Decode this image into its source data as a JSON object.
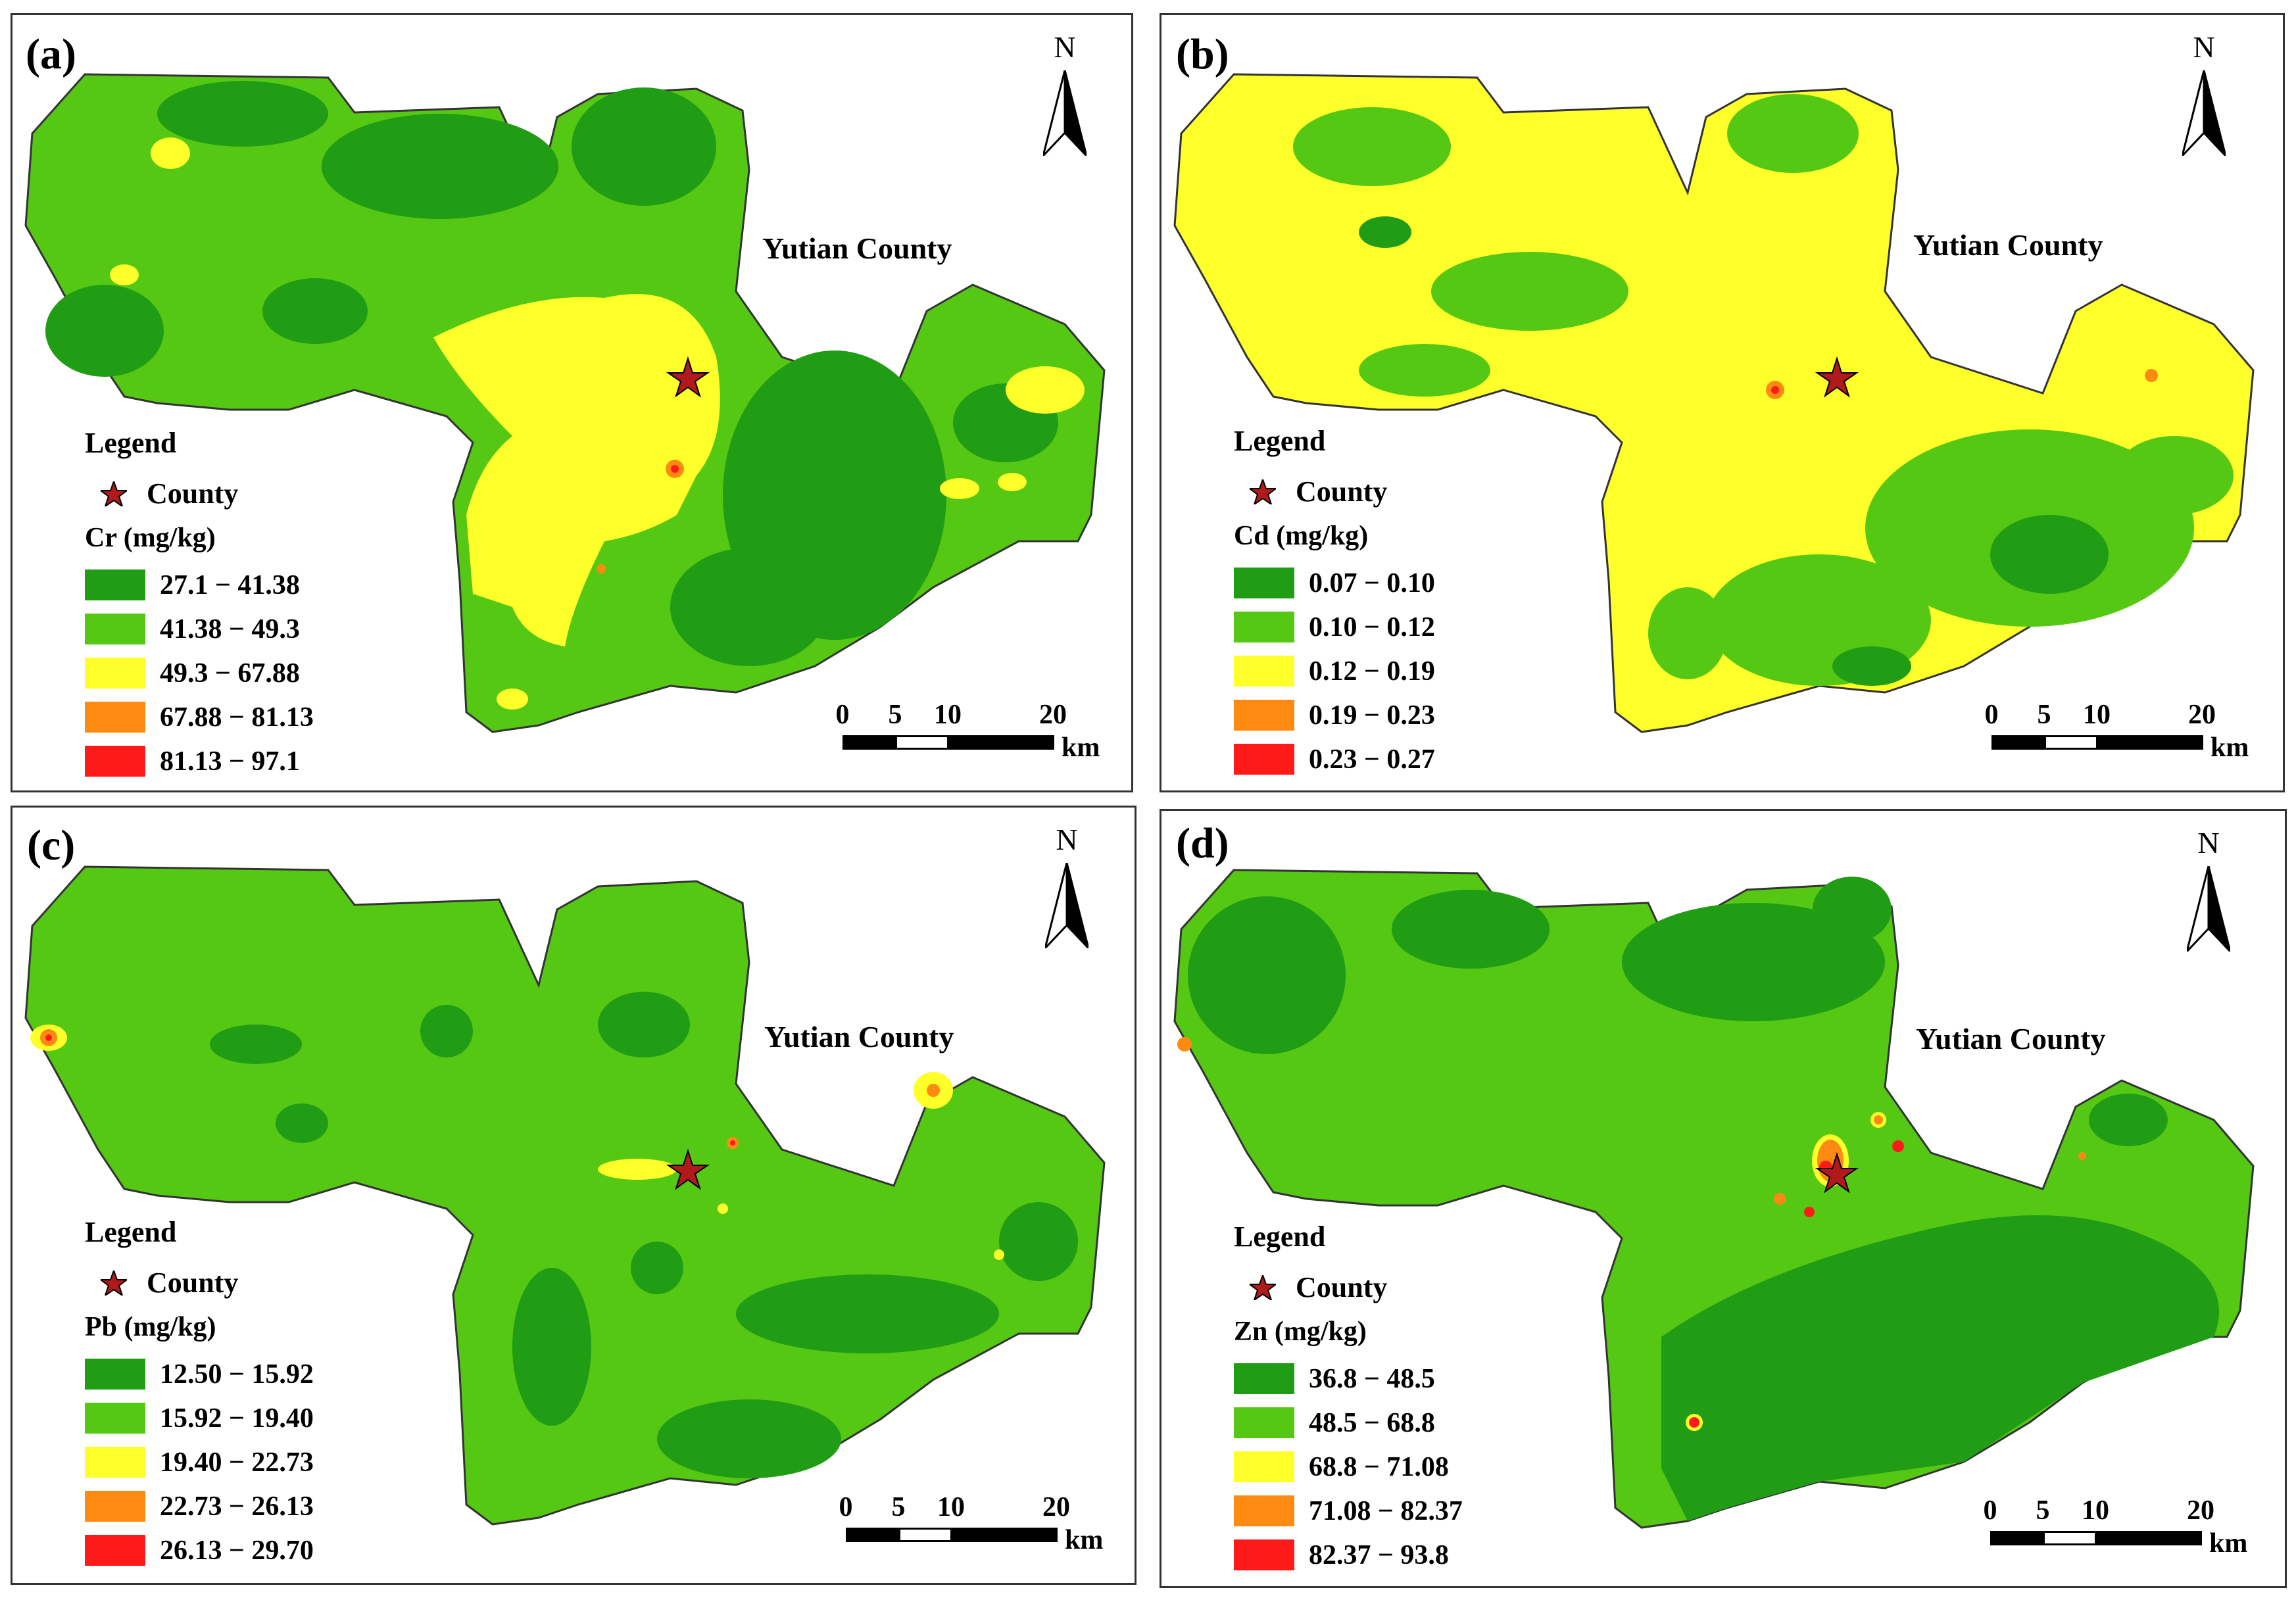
{
  "panels": [
    {
      "label": "(a)",
      "county_name": "Yutian County",
      "north": "N",
      "legend_title": "Legend",
      "county_label": "County",
      "unit": "Cr (mg/kg)",
      "classes": [
        "27.1 − 41.38",
        "41.38 − 49.3",
        "49.3 − 67.88",
        "67.88 − 81.13",
        "81.13 − 97.1"
      ],
      "scale_ticks": [
        "0",
        "5",
        "10",
        "20"
      ],
      "scale_unit": "km",
      "scheme": [
        "#4c9e2a",
        "#4fb012",
        "#ffff2a",
        "#ff8a12",
        "#ff1a1a"
      ]
    },
    {
      "label": "(b)",
      "county_name": "Yutian County",
      "north": "N",
      "legend_title": "Legend",
      "county_label": "County",
      "unit": "Cd (mg/kg)",
      "classes": [
        "0.07 − 0.10",
        "0.10 − 0.12",
        "0.12 − 0.19",
        "0.19 − 0.23",
        "0.23 − 0.27"
      ],
      "scale_ticks": [
        "0",
        "5",
        "10",
        "20"
      ],
      "scale_unit": "km",
      "scheme": [
        "#ffff2a",
        "#55c814",
        "#219c15",
        "#ff8a12",
        "#ff1a1a"
      ]
    },
    {
      "label": "(c)",
      "county_name": "Yutian County",
      "north": "N",
      "legend_title": "Legend",
      "county_label": "County",
      "unit": "Pb (mg/kg)",
      "classes": [
        "12.50 − 15.92",
        "15.92 − 19.40",
        "19.40 − 22.73",
        "22.73 − 26.13",
        "26.13 − 29.70"
      ],
      "scale_ticks": [
        "0",
        "5",
        "10",
        "20"
      ],
      "scale_unit": "km",
      "scheme": [
        "#55c814",
        "#219c15",
        "#ffff2a",
        "#ff8a12",
        "#ff1a1a"
      ]
    },
    {
      "label": "(d)",
      "county_name": "Yutian County",
      "north": "N",
      "legend_title": "Legend",
      "county_label": "County",
      "unit": "Zn (mg/kg)",
      "classes": [
        "36.8 − 48.5",
        "48.5 − 68.8",
        "68.8 − 71.08",
        "71.08 − 82.37",
        "82.37 − 93.8"
      ],
      "scale_ticks": [
        "0",
        "5",
        "10",
        "20"
      ],
      "scale_unit": "km",
      "scheme": [
        "#219c15",
        "#55c814",
        "#ffff2a",
        "#ff8a12",
        "#ff1a1a"
      ]
    }
  ],
  "colors": {
    "class_1": "#219c15",
    "class_2": "#55c814",
    "class_3": "#ffff2a",
    "class_4": "#ff8a12",
    "class_5": "#ff1a1a",
    "county_star": "#b01a1a"
  }
}
